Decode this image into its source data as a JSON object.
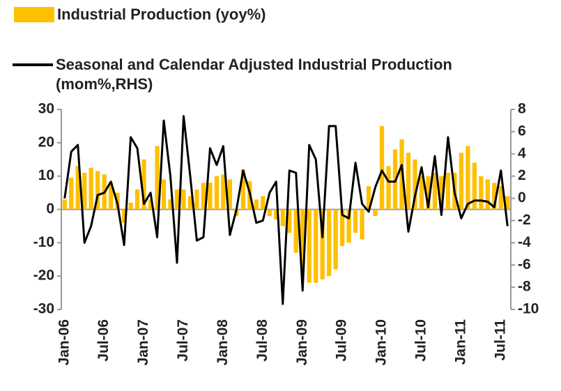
{
  "chart_data": {
    "type": "bar-line",
    "categories": [
      "Jan-06",
      null,
      null,
      null,
      null,
      null,
      "Jul-06",
      null,
      null,
      null,
      null,
      null,
      "Jan-07",
      null,
      null,
      null,
      null,
      null,
      "Jul-07",
      null,
      null,
      null,
      null,
      null,
      "Jan-08",
      null,
      null,
      null,
      null,
      null,
      "Jul-08",
      null,
      null,
      null,
      null,
      null,
      "Jan-09",
      null,
      null,
      null,
      null,
      null,
      "Jul-09",
      null,
      null,
      null,
      null,
      null,
      "Jan-10",
      null,
      null,
      null,
      null,
      null,
      "Jul-10",
      null,
      null,
      null,
      null,
      null,
      "Jan-11",
      null,
      null,
      null,
      null,
      null,
      "Jul-11",
      null
    ],
    "series": [
      {
        "name": "Industrial Production (yoy%)",
        "color": "#FFC000",
        "type": "bar",
        "axis": "y",
        "values": [
          3,
          9.5,
          13,
          11,
          12.5,
          11.5,
          10.5,
          8,
          5,
          -4,
          2,
          6,
          15,
          3,
          19,
          9,
          3,
          6,
          6,
          4,
          6,
          8,
          8,
          10,
          10.5,
          9,
          -2,
          12,
          8.5,
          3,
          4,
          -2,
          -3,
          -5,
          -7,
          -13,
          -18,
          -22,
          -22,
          -21,
          -20,
          -18,
          -11,
          -10,
          -7,
          -9,
          7,
          -2,
          25,
          13,
          18,
          21,
          17,
          15,
          10,
          10,
          11,
          10,
          11,
          11,
          17,
          19,
          14,
          10,
          9,
          8,
          7,
          4
        ]
      },
      {
        "name": "Seasonal and Calendar Adjusted Industrial Production (mom%,RHS)",
        "color": "#000000",
        "type": "line",
        "axis": "y2",
        "values": [
          0,
          4.2,
          4.8,
          -4,
          -2.5,
          0.3,
          0.5,
          1.5,
          -0.5,
          -4.2,
          5.5,
          4.5,
          -0.5,
          0.5,
          -3.5,
          7,
          2,
          -5.8,
          7.4,
          2,
          -3.8,
          -3.5,
          4.5,
          3,
          4.7,
          -3.3,
          -1,
          2.5,
          0.5,
          -2.2,
          -2,
          0.5,
          1.5,
          -9.5,
          2.5,
          2.3,
          -8.3,
          4.8,
          3.5,
          -3.5,
          6.5,
          6.5,
          -1.5,
          -1.8,
          3.2,
          -0.5,
          -1.2,
          1,
          2.5,
          1.5,
          1.5,
          3,
          -3,
          0.2,
          2.8,
          -0.8,
          3.8,
          -1.5,
          5.5,
          0.5,
          -1.8,
          -0.5,
          -0.2,
          -0.2,
          -0.3,
          -0.8,
          2.5,
          -2.5
        ]
      }
    ],
    "ylim": [
      -30,
      30
    ],
    "yticks": [
      -30,
      -20,
      -10,
      0,
      10,
      20,
      30
    ],
    "y2lim": [
      -10,
      8
    ],
    "y2ticks": [
      -10,
      -8,
      -6,
      -4,
      -2,
      0,
      2,
      4,
      6,
      8
    ],
    "grid": false,
    "legend": "top"
  }
}
